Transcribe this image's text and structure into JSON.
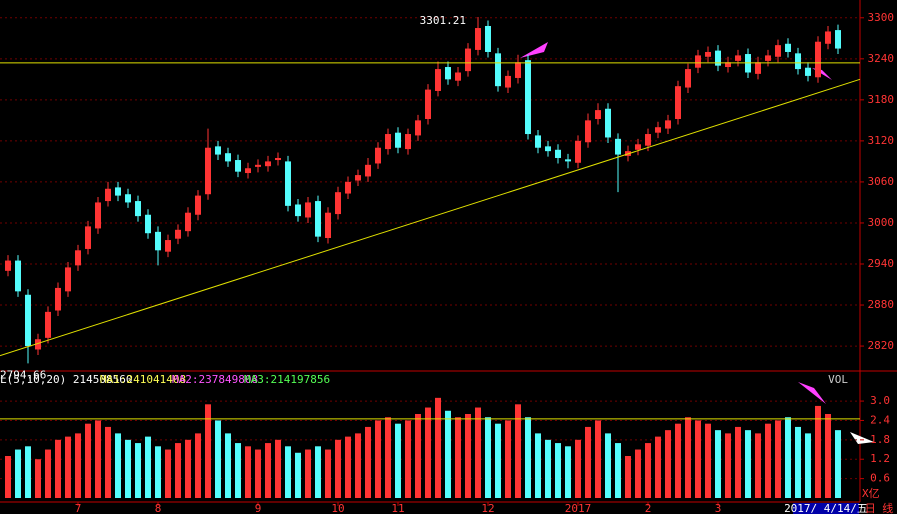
{
  "chart_data": {
    "type": "candlestick",
    "categories": [
      null,
      null,
      null,
      null,
      null,
      null,
      null,
      "7",
      null,
      null,
      null,
      null,
      null,
      null,
      null,
      "8",
      null,
      null,
      null,
      null,
      null,
      null,
      null,
      null,
      null,
      "9",
      null,
      null,
      null,
      null,
      null,
      null,
      null,
      "10",
      null,
      null,
      null,
      null,
      null,
      "11",
      null,
      null,
      null,
      null,
      null,
      null,
      null,
      null,
      "12",
      null,
      null,
      null,
      null,
      null,
      null,
      null,
      null,
      "2017",
      null,
      null,
      null,
      null,
      null,
      null,
      "2",
      null,
      null,
      null,
      null,
      null,
      null,
      "3",
      null,
      null,
      null,
      null,
      null,
      null,
      null,
      null,
      null,
      null,
      null,
      null
    ],
    "open": [
      2930,
      2945,
      2895,
      2815,
      2832,
      2872,
      2900,
      2938,
      2962,
      2992,
      3032,
      3052,
      3042,
      3032,
      3012,
      2987,
      2958,
      2977,
      2988,
      3012,
      3042,
      3112,
      3102,
      3092,
      3073,
      3082,
      3083,
      3092,
      3090,
      3027,
      3008,
      3032,
      2978,
      3013,
      3043,
      3062,
      3068,
      3087,
      3108,
      3132,
      3108,
      3128,
      3152,
      3193,
      3228,
      3208,
      3222,
      3253,
      3288,
      3248,
      3198,
      3212,
      3238,
      3128,
      3112,
      3107,
      3093,
      3088,
      3118,
      3152,
      3167,
      3123,
      3098,
      3107,
      3113,
      3132,
      3138,
      3152,
      3198,
      3227,
      3243,
      3252,
      3228,
      3237,
      3247,
      3218,
      3237,
      3243,
      3262,
      3248,
      3227,
      3213,
      3262,
      3282
    ],
    "high": [
      2953,
      2953,
      2903,
      2838,
      2878,
      2913,
      2943,
      2968,
      3003,
      3038,
      3060,
      3060,
      3050,
      3040,
      3020,
      2995,
      2983,
      2998,
      3023,
      3048,
      3138,
      3120,
      3110,
      3100,
      3088,
      3093,
      3098,
      3103,
      3098,
      3035,
      3038,
      3040,
      3023,
      3053,
      3068,
      3078,
      3095,
      3118,
      3138,
      3140,
      3138,
      3158,
      3203,
      3236,
      3236,
      3228,
      3263,
      3301.21,
      3296,
      3256,
      3223,
      3246,
      3246,
      3136,
      3120,
      3115,
      3101,
      3128,
      3160,
      3175,
      3175,
      3131,
      3113,
      3123,
      3138,
      3148,
      3158,
      3208,
      3233,
      3253,
      3258,
      3260,
      3243,
      3253,
      3255,
      3243,
      3253,
      3268,
      3270,
      3256,
      3235,
      3273,
      3288,
      3290
    ],
    "low": [
      2922,
      2892,
      2794.66,
      2807,
      2824,
      2864,
      2892,
      2930,
      2954,
      2984,
      3024,
      3032,
      3022,
      3002,
      2977,
      2938,
      2950,
      2969,
      2980,
      3004,
      3034,
      3092,
      3082,
      3067,
      3065,
      3074,
      3075,
      3084,
      3017,
      3002,
      3000,
      2972,
      2970,
      3005,
      3035,
      3054,
      3060,
      3079,
      3100,
      3102,
      3100,
      3120,
      3144,
      3185,
      3202,
      3200,
      3214,
      3245,
      3242,
      3192,
      3190,
      3204,
      3122,
      3102,
      3097,
      3087,
      3080,
      3080,
      3110,
      3144,
      3117,
      3045,
      3090,
      3099,
      3105,
      3124,
      3130,
      3144,
      3190,
      3219,
      3235,
      3222,
      3220,
      3229,
      3212,
      3210,
      3229,
      3235,
      3242,
      3217,
      3207,
      3205,
      3254,
      3247
    ],
    "close": [
      2945,
      2900,
      2820,
      2830,
      2870,
      2905,
      2935,
      2960,
      2995,
      3030,
      3050,
      3040,
      3030,
      3010,
      2985,
      2960,
      2975,
      2990,
      3015,
      3040,
      3110,
      3100,
      3090,
      3075,
      3080,
      3085,
      3090,
      3095,
      3025,
      3010,
      3030,
      2980,
      3015,
      3045,
      3060,
      3070,
      3085,
      3110,
      3130,
      3110,
      3130,
      3150,
      3195,
      3225,
      3210,
      3220,
      3255,
      3285,
      3250,
      3200,
      3215,
      3235,
      3130,
      3110,
      3105,
      3095,
      3090,
      3120,
      3150,
      3165,
      3125,
      3100,
      3105,
      3115,
      3130,
      3140,
      3150,
      3200,
      3225,
      3245,
      3250,
      3230,
      3235,
      3245,
      3220,
      3235,
      3245,
      3260,
      3250,
      3225,
      3215,
      3265,
      3280,
      3255
    ],
    "up_color": "#ff3434",
    "down_color": "#54fcfc",
    "ylim": [
      2785,
      3326
    ],
    "yticks": [
      2820,
      2880,
      2940,
      3000,
      3060,
      3120,
      3180,
      3240,
      3300
    ],
    "grid": true,
    "hline": 3234,
    "trendline": {
      "from": [
        -0.8,
        2806
      ],
      "to": [
        85.2,
        3210
      ]
    },
    "volume": {
      "values": [
        1.3,
        1.5,
        1.6,
        1.2,
        1.5,
        1.8,
        1.9,
        2.0,
        2.3,
        2.4,
        2.2,
        2.0,
        1.8,
        1.7,
        1.9,
        1.6,
        1.5,
        1.7,
        1.8,
        2.0,
        2.9,
        2.4,
        2.0,
        1.7,
        1.6,
        1.5,
        1.7,
        1.8,
        1.6,
        1.4,
        1.5,
        1.6,
        1.5,
        1.8,
        1.9,
        2.0,
        2.2,
        2.4,
        2.5,
        2.3,
        2.4,
        2.6,
        2.8,
        3.1,
        2.7,
        2.5,
        2.6,
        2.8,
        2.5,
        2.3,
        2.4,
        2.9,
        2.5,
        2.0,
        1.8,
        1.7,
        1.6,
        1.8,
        2.2,
        2.4,
        2.0,
        1.7,
        1.3,
        1.5,
        1.7,
        1.9,
        2.1,
        2.3,
        2.5,
        2.4,
        2.3,
        2.1,
        2.0,
        2.2,
        2.1,
        2.0,
        2.3,
        2.4,
        2.5,
        2.2,
        2.0,
        2.85,
        2.6,
        2.1
      ],
      "ylim": [
        0,
        3.9
      ],
      "yticks": [
        0.6,
        1.2,
        1.8,
        2.4,
        {
          "value": 3,
          "label": "3.0"
        }
      ],
      "hline": 2.45,
      "title": "VOL",
      "unit": "X亿",
      "legend": [
        {
          "text": "L(5,10,20) 214508560",
          "color": "#ffffff"
        },
        {
          "text": "MA1:241041408",
          "color": "#ffff54"
        },
        {
          "text": "MA2:237849808",
          "color": "#ff54ff"
        },
        {
          "text": "MA3:214197856",
          "color": "#54ff54"
        }
      ]
    },
    "date": "2017/ 4/14/五",
    "period": "日 线"
  }
}
